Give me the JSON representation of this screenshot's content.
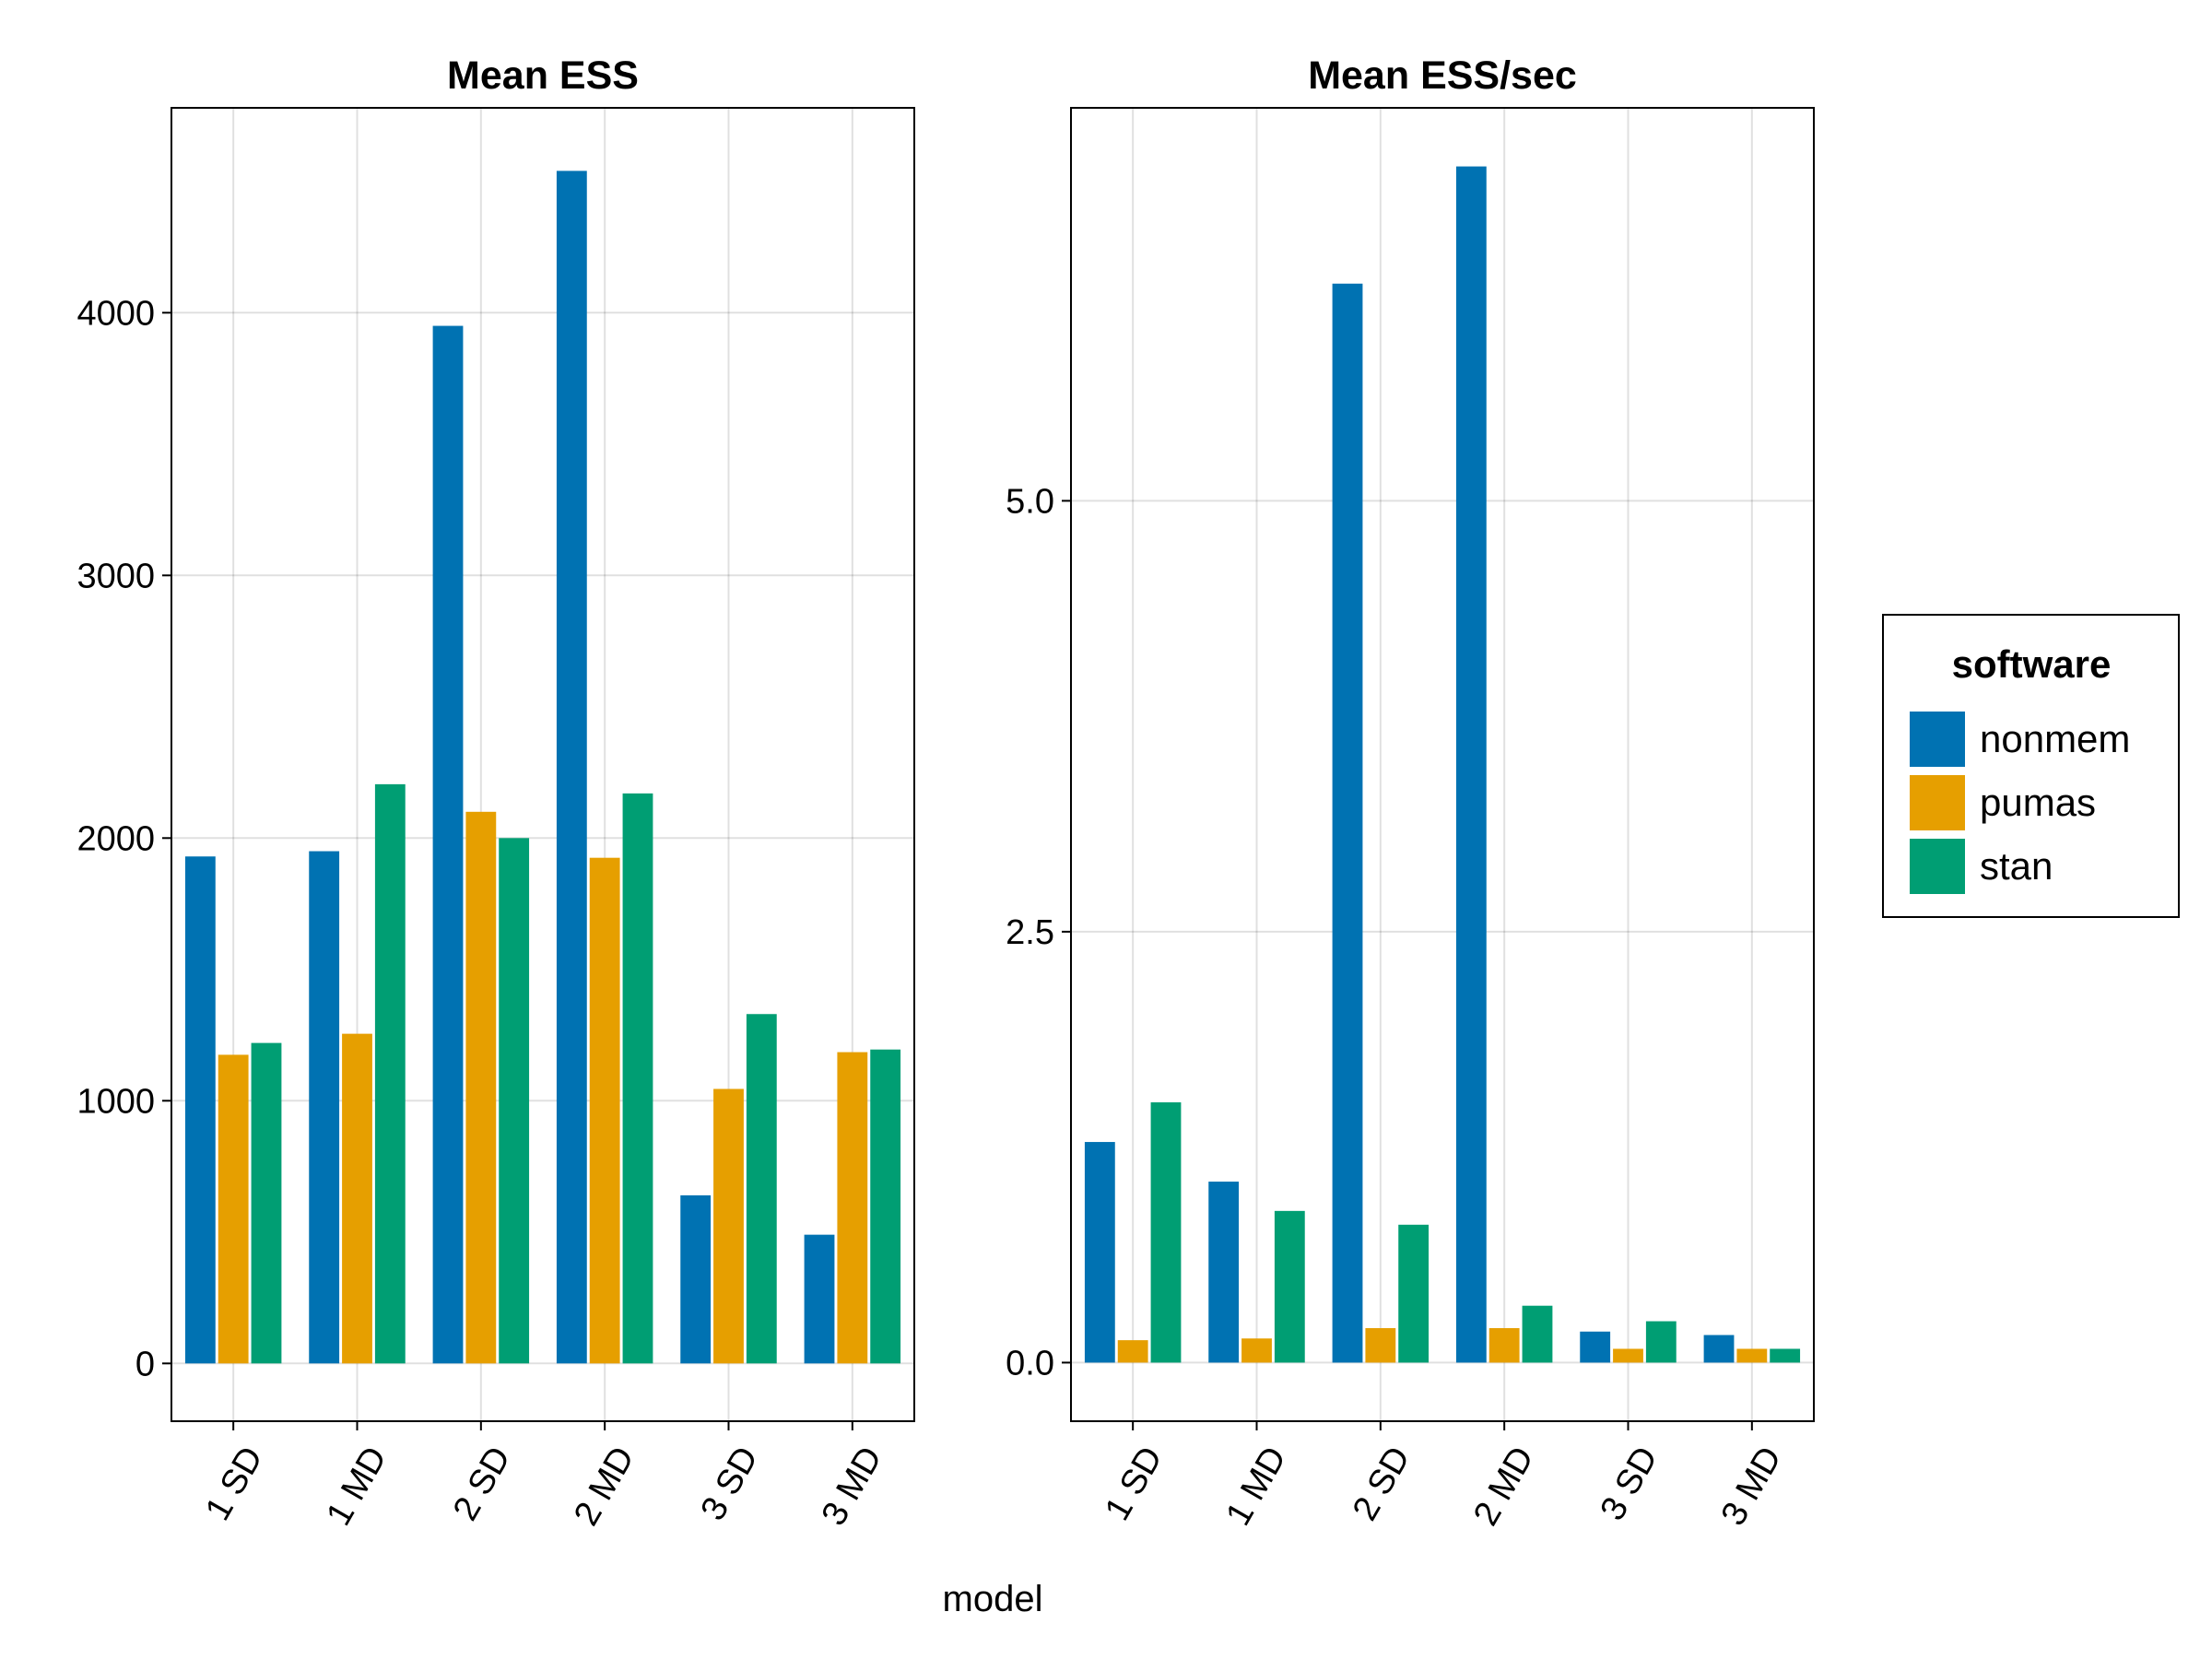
{
  "figure": {
    "shared_xlabel": "model"
  },
  "legend": {
    "title": "software",
    "position": "right",
    "entries": [
      {
        "name": "nonmem",
        "color": "#0072b2"
      },
      {
        "name": "pumas",
        "color": "#e69f00"
      },
      {
        "name": "stan",
        "color": "#009e73"
      }
    ]
  },
  "chart_data": [
    {
      "type": "bar",
      "title": "Mean ESS",
      "xlabel": "model",
      "ylabel": "",
      "grid": true,
      "categories": [
        "1 SD",
        "1 MD",
        "2 SD",
        "2 MD",
        "3 SD",
        "3 MD"
      ],
      "ylim": [
        -220,
        4780
      ],
      "yticks": [
        0,
        1000,
        2000,
        3000,
        4000
      ],
      "ytick_labels": [
        "0",
        "1000",
        "2000",
        "3000",
        "4000"
      ],
      "series": [
        {
          "name": "nonmem",
          "color": "#0072b2",
          "values": [
            1930,
            1950,
            3950,
            4540,
            640,
            490
          ]
        },
        {
          "name": "pumas",
          "color": "#e69f00",
          "values": [
            1175,
            1255,
            2100,
            1925,
            1045,
            1185
          ]
        },
        {
          "name": "stan",
          "color": "#009e73",
          "values": [
            1220,
            2205,
            2000,
            2170,
            1330,
            1195
          ]
        }
      ]
    },
    {
      "type": "bar",
      "title": "Mean ESS/sec",
      "xlabel": "model",
      "ylabel": "",
      "grid": true,
      "categories": [
        "1 SD",
        "1 MD",
        "2 SD",
        "2 MD",
        "3 SD",
        "3 MD"
      ],
      "ylim": [
        -0.34,
        7.28
      ],
      "yticks": [
        0,
        2.5,
        5
      ],
      "ytick_labels": [
        "0.0",
        "2.5",
        "5.0"
      ],
      "series": [
        {
          "name": "nonmem",
          "color": "#0072b2",
          "values": [
            1.28,
            1.05,
            6.26,
            6.94,
            0.18,
            0.16
          ]
        },
        {
          "name": "pumas",
          "color": "#e69f00",
          "values": [
            0.13,
            0.14,
            0.2,
            0.2,
            0.08,
            0.08
          ]
        },
        {
          "name": "stan",
          "color": "#009e73",
          "values": [
            1.51,
            0.88,
            0.8,
            0.33,
            0.24,
            0.08
          ]
        }
      ]
    }
  ]
}
